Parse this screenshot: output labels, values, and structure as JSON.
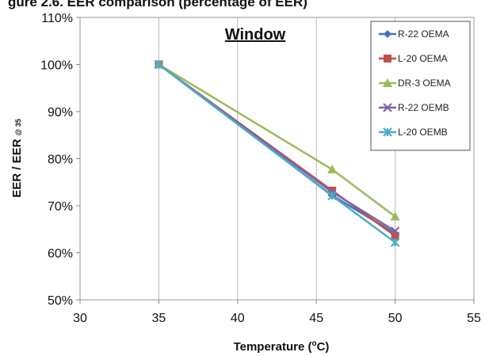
{
  "page_header": "gure 2.6. EER comparison (percentage of EER)",
  "chart_data": {
    "type": "line",
    "title": "Window",
    "xlabel": "Temperature (",
    "xlabel_sup": "o",
    "xlabel_suffix": "C)",
    "ylabel": "EER / EER",
    "ylabel_sub": "@ 35",
    "xlim": [
      30,
      55
    ],
    "ylim": [
      0.5,
      1.1
    ],
    "x_ticks": [
      30,
      35,
      40,
      45,
      50,
      55
    ],
    "y_ticks": [
      0.5,
      0.6,
      0.7,
      0.8,
      0.9,
      1.0,
      1.1
    ],
    "y_tick_labels": [
      "50%",
      "60%",
      "70%",
      "80%",
      "90%",
      "100%",
      "110%"
    ],
    "grid": "vertical",
    "legend_position": "right",
    "series": [
      {
        "name": "R-22 OEMA",
        "color": "#4472C4",
        "marker": "diamond",
        "x": [
          35,
          46,
          50
        ],
        "y": [
          1.0,
          0.722,
          0.641
        ]
      },
      {
        "name": "L-20 OEMA",
        "color": "#C0504D",
        "marker": "square",
        "x": [
          35,
          46,
          50
        ],
        "y": [
          1.0,
          0.732,
          0.636
        ]
      },
      {
        "name": "DR-3 OEMA",
        "color": "#9BBB59",
        "marker": "triangle",
        "x": [
          35,
          46,
          50
        ],
        "y": [
          1.0,
          0.777,
          0.677
        ]
      },
      {
        "name": "R-22 OEMB",
        "color": "#8064A2",
        "marker": "x",
        "x": [
          35,
          46,
          50
        ],
        "y": [
          1.0,
          0.729,
          0.646
        ]
      },
      {
        "name": "L-20 OEMB",
        "color": "#4BACC6",
        "marker": "star",
        "x": [
          35,
          46,
          50
        ],
        "y": [
          1.0,
          0.721,
          0.622
        ]
      }
    ]
  }
}
